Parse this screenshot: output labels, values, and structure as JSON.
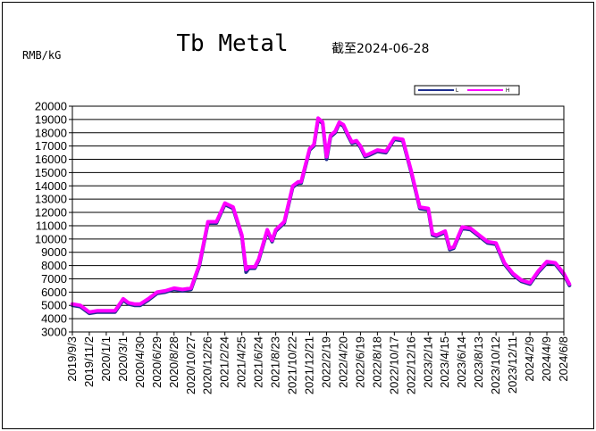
{
  "chart_data": {
    "type": "line",
    "title": "Tb Metal",
    "subtitle": "截至2024-06-28",
    "ylabel": "RMB/kG",
    "ylim": [
      3000,
      20000
    ],
    "yticks": [
      3000,
      4000,
      5000,
      6000,
      7000,
      8000,
      9000,
      10000,
      11000,
      12000,
      13000,
      14000,
      15000,
      16000,
      17000,
      18000,
      19000,
      20000
    ],
    "xticks": [
      "2019/9/3",
      "2019/11/2",
      "2020/1/1",
      "2020/3/1",
      "2020/4/30",
      "2020/6/29",
      "2020/8/28",
      "2020/10/27",
      "2020/12/26",
      "2021/2/24",
      "2021/4/25",
      "2021/6/24",
      "2021/8/23",
      "2021/10/22",
      "2021/12/21",
      "2022/2/19",
      "2022/4/20",
      "2022/6/19",
      "2022/8/18",
      "2022/10/17",
      "2022/12/16",
      "2023/2/14",
      "2023/4/15",
      "2023/6/14",
      "2023/8/13",
      "2023/10/12",
      "2023/12/11",
      "2024/2/9",
      "2024/4/9",
      "2024/6/8"
    ],
    "grid": true,
    "legend_position": "top-right",
    "series": [
      {
        "name": "L",
        "color": "#1f2f8f",
        "x": [
          "2019/9/3",
          "2019/10/1",
          "2019/11/2",
          "2019/12/1",
          "2020/1/1",
          "2020/2/1",
          "2020/3/1",
          "2020/3/20",
          "2020/4/10",
          "2020/4/30",
          "2020/5/29",
          "2020/6/29",
          "2020/7/28",
          "2020/8/28",
          "2020/9/27",
          "2020/10/27",
          "2020/11/26",
          "2020/12/26",
          "2021/1/25",
          "2021/2/24",
          "2021/3/25",
          "2021/4/25",
          "2021/5/10",
          "2021/5/20",
          "2021/6/10",
          "2021/6/24",
          "2021/7/24",
          "2021/8/10",
          "2021/8/23",
          "2021/9/22",
          "2021/10/22",
          "2021/11/10",
          "2021/11/21",
          "2021/12/21",
          "2022/1/5",
          "2022/1/20",
          "2022/2/5",
          "2022/2/19",
          "2022/3/5",
          "2022/3/21",
          "2022/4/5",
          "2022/4/20",
          "2022/5/5",
          "2022/5/20",
          "2022/6/5",
          "2022/6/19",
          "2022/7/5",
          "2022/7/19",
          "2022/8/18",
          "2022/9/17",
          "2022/10/17",
          "2022/11/16",
          "2022/12/16",
          "2023/1/15",
          "2023/2/14",
          "2023/3/1",
          "2023/3/15",
          "2023/4/15",
          "2023/5/1",
          "2023/5/15",
          "2023/6/14",
          "2023/7/14",
          "2023/8/13",
          "2023/9/12",
          "2023/10/12",
          "2023/11/11",
          "2023/12/11",
          "2024/1/10",
          "2024/2/9",
          "2024/3/10",
          "2024/4/9",
          "2024/5/9",
          "2024/6/8",
          "2024/6/28"
        ],
        "values": [
          5000,
          4900,
          4400,
          4500,
          4500,
          4500,
          5400,
          5100,
          5000,
          5000,
          5400,
          5900,
          6000,
          6200,
          6100,
          6200,
          8000,
          11200,
          11200,
          12600,
          12300,
          10200,
          7500,
          7800,
          7800,
          8400,
          10600,
          9800,
          10600,
          11200,
          13900,
          14200,
          14200,
          16700,
          17000,
          19000,
          18700,
          16000,
          17700,
          18000,
          18700,
          18500,
          17800,
          17200,
          17300,
          16900,
          16200,
          16300,
          16600,
          16500,
          17500,
          17400,
          15000,
          12300,
          12200,
          10300,
          10200,
          10500,
          9200,
          9300,
          10800,
          10700,
          10200,
          9700,
          9600,
          8100,
          7300,
          6800,
          6600,
          7500,
          8200,
          8100,
          7300,
          6500
        ]
      },
      {
        "name": "H",
        "color": "#ff00ff",
        "x": [
          "2019/9/3",
          "2019/10/1",
          "2019/11/2",
          "2019/12/1",
          "2020/1/1",
          "2020/2/1",
          "2020/3/1",
          "2020/3/20",
          "2020/4/10",
          "2020/4/30",
          "2020/5/29",
          "2020/6/29",
          "2020/7/28",
          "2020/8/28",
          "2020/9/27",
          "2020/10/27",
          "2020/11/26",
          "2020/12/26",
          "2021/1/25",
          "2021/2/24",
          "2021/3/25",
          "2021/4/25",
          "2021/5/10",
          "2021/5/20",
          "2021/6/10",
          "2021/6/24",
          "2021/7/24",
          "2021/8/10",
          "2021/8/23",
          "2021/9/22",
          "2021/10/22",
          "2021/11/10",
          "2021/11/21",
          "2021/12/21",
          "2022/1/5",
          "2022/1/20",
          "2022/2/5",
          "2022/2/19",
          "2022/3/5",
          "2022/3/21",
          "2022/4/5",
          "2022/4/20",
          "2022/5/5",
          "2022/5/20",
          "2022/6/5",
          "2022/6/19",
          "2022/7/5",
          "2022/7/19",
          "2022/8/18",
          "2022/9/17",
          "2022/10/17",
          "2022/11/16",
          "2022/12/16",
          "2023/1/15",
          "2023/2/14",
          "2023/3/1",
          "2023/3/15",
          "2023/4/15",
          "2023/5/1",
          "2023/5/15",
          "2023/6/14",
          "2023/7/14",
          "2023/8/13",
          "2023/9/12",
          "2023/10/12",
          "2023/11/11",
          "2023/12/11",
          "2024/1/10",
          "2024/2/9",
          "2024/3/10",
          "2024/4/9",
          "2024/5/9",
          "2024/6/8",
          "2024/6/28"
        ],
        "values": [
          5100,
          5000,
          4500,
          4600,
          4600,
          4600,
          5500,
          5200,
          5100,
          5100,
          5500,
          6000,
          6100,
          6300,
          6200,
          6300,
          8100,
          11300,
          11300,
          12700,
          12400,
          10300,
          7700,
          7900,
          7900,
          8500,
          10700,
          9900,
          10700,
          11300,
          14000,
          14300,
          14300,
          16800,
          17100,
          19100,
          18800,
          16200,
          17800,
          18100,
          18800,
          18600,
          17900,
          17300,
          17400,
          17000,
          16300,
          16400,
          16700,
          16600,
          17600,
          17500,
          15100,
          12400,
          12300,
          10400,
          10300,
          10600,
          9300,
          9400,
          10900,
          10800,
          10300,
          9800,
          9700,
          8200,
          7400,
          6900,
          6700,
          7600,
          8300,
          8200,
          7400,
          6600
        ]
      }
    ]
  }
}
